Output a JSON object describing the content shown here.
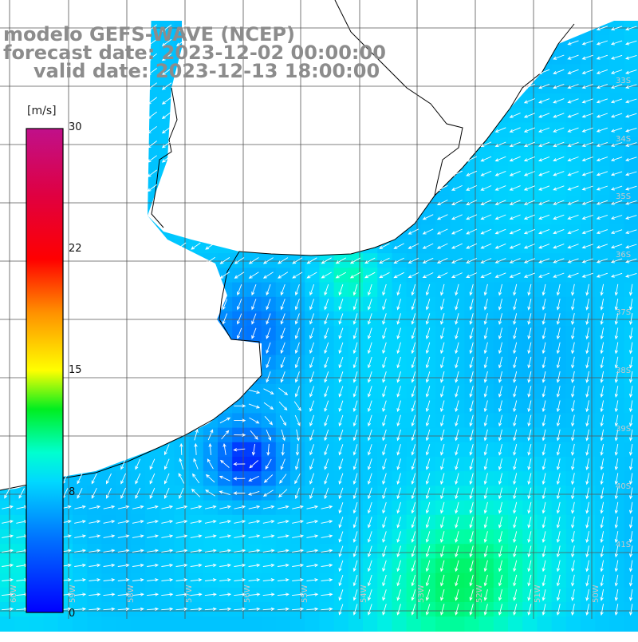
{
  "title": {
    "line1": "modelo GEFS-WAVE (NCEP)",
    "line2": "forecast date: 2023-12-02 00:00:00",
    "line3": "valid date: 2023-12-13 18:00:00"
  },
  "colorbar": {
    "unit": "[m/s]",
    "ticks": [
      "30",
      "22",
      "15",
      "8",
      "0"
    ],
    "range": [
      0,
      30
    ]
  },
  "colors": {
    "land": "#ffffff",
    "grid": "#555555",
    "coastline": "#000000",
    "arrow": "#ffffff",
    "title": "#8c8c8c"
  },
  "axes": {
    "lon_labels": [
      "60W",
      "59W",
      "58W",
      "57W",
      "56W",
      "55W",
      "54W",
      "53W",
      "52W",
      "51W",
      "50W"
    ],
    "lat_labels": [
      "33S",
      "34S",
      "35S",
      "36S",
      "37S",
      "38S",
      "39S",
      "40S",
      "41S"
    ]
  }
}
